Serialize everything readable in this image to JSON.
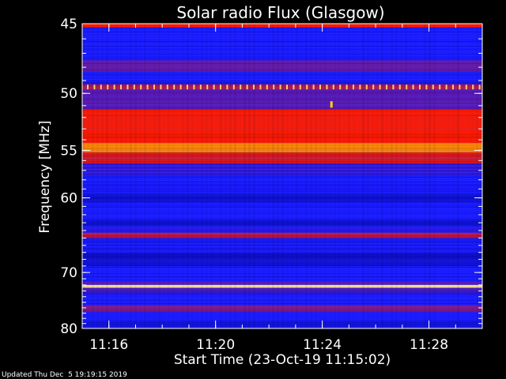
{
  "chart_data": {
    "type": "heatmap",
    "title": "Solar radio Flux (Glasgow)",
    "xlabel": "Start Time (23-Oct-19 11:15:02)",
    "ylabel": "Frequency [MHz]",
    "footer": "Updated Thu Dec  5 19:19:15 2019",
    "x_ticks": [
      "11:16",
      "11:20",
      "11:24",
      "11:28"
    ],
    "x_tick_minutes": [
      1.0,
      5.0,
      9.0,
      13.0
    ],
    "x_range_minutes": [
      0.0,
      15.0
    ],
    "y_ticks": [
      45,
      50,
      55,
      60,
      70,
      80
    ],
    "ylim": [
      45,
      80
    ],
    "y_scale": "reciprocal",
    "grid": false,
    "colormap": [
      "#00008b",
      "#1a1aff",
      "#9a1a6a",
      "#ff1a00",
      "#ffd200",
      "#ffffff"
    ],
    "bands": [
      {
        "from_mhz": 45.0,
        "to_mhz": 45.25,
        "level": 3
      },
      {
        "from_mhz": 45.25,
        "to_mhz": 47.5,
        "level": 1
      },
      {
        "from_mhz": 47.5,
        "to_mhz": 48.3,
        "level": 1.6
      },
      {
        "from_mhz": 48.3,
        "to_mhz": 49.3,
        "level": 1
      },
      {
        "from_mhz": 49.3,
        "to_mhz": 49.7,
        "level": 2.2
      },
      {
        "from_mhz": 49.7,
        "to_mhz": 51.3,
        "level": 1.5
      },
      {
        "from_mhz": 51.3,
        "to_mhz": 54.3,
        "level": 3
      },
      {
        "from_mhz": 54.3,
        "to_mhz": 55.2,
        "level": 3.6
      },
      {
        "from_mhz": 55.2,
        "to_mhz": 56.3,
        "level": 2.7
      },
      {
        "from_mhz": 56.3,
        "to_mhz": 57.5,
        "level": 1.2
      },
      {
        "from_mhz": 57.5,
        "to_mhz": 59.5,
        "level": 1
      },
      {
        "from_mhz": 59.5,
        "to_mhz": 60.5,
        "level": 0.6
      },
      {
        "from_mhz": 60.5,
        "to_mhz": 62.5,
        "level": 1
      },
      {
        "from_mhz": 62.5,
        "to_mhz": 63.5,
        "level": 0.7
      },
      {
        "from_mhz": 63.5,
        "to_mhz": 64.3,
        "level": 1.1
      },
      {
        "from_mhz": 64.3,
        "to_mhz": 65.0,
        "level": 2.4
      },
      {
        "from_mhz": 65.0,
        "to_mhz": 67.0,
        "level": 1
      },
      {
        "from_mhz": 67.0,
        "to_mhz": 69.0,
        "level": 0.6
      },
      {
        "from_mhz": 69.0,
        "to_mhz": 71.5,
        "level": 1
      },
      {
        "from_mhz": 71.5,
        "to_mhz": 72.0,
        "level": 1.5
      },
      {
        "from_mhz": 72.0,
        "to_mhz": 72.5,
        "level": 4.6
      },
      {
        "from_mhz": 72.5,
        "to_mhz": 73.3,
        "level": 1.4
      },
      {
        "from_mhz": 73.3,
        "to_mhz": 75.5,
        "level": 1
      },
      {
        "from_mhz": 75.5,
        "to_mhz": 76.8,
        "level": 1.8
      },
      {
        "from_mhz": 76.8,
        "to_mhz": 78.5,
        "level": 1
      },
      {
        "from_mhz": 78.5,
        "to_mhz": 80.0,
        "level": 0.8
      }
    ],
    "dotted_line_mhz": 49.5,
    "spike": {
      "minute": 9.3,
      "mhz": 50.9,
      "level": 4
    }
  }
}
